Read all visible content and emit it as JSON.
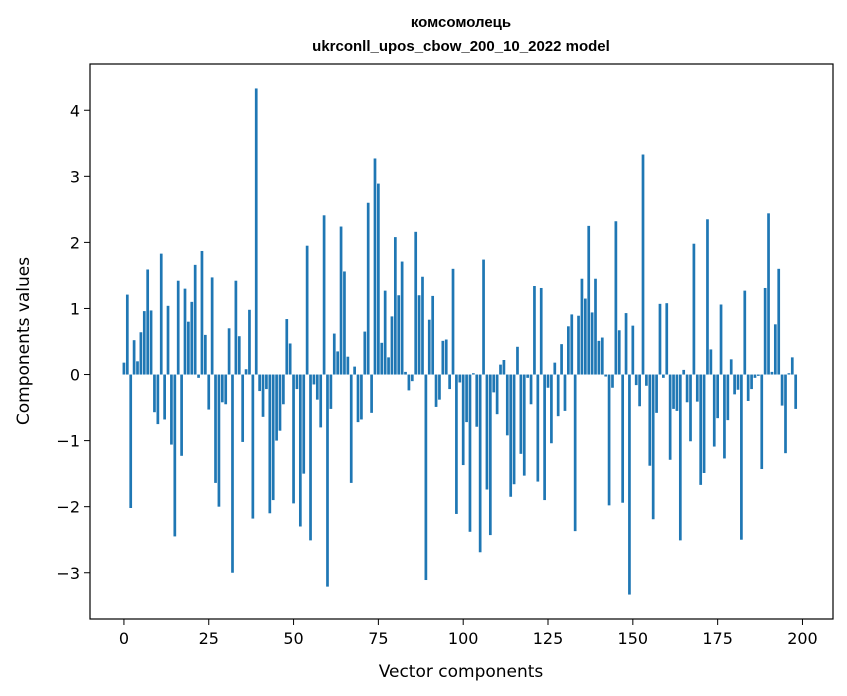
{
  "chart_data": {
    "type": "bar",
    "title": "комсомолець",
    "subtitle": "ukrconll_upos_cbow_200_10_2022 model",
    "xlabel": "Vector components",
    "ylabel": "Components values",
    "xlim": [
      -10,
      209
    ],
    "ylim": [
      -3.7,
      4.7
    ],
    "xticks": [
      0,
      25,
      50,
      75,
      100,
      125,
      150,
      175,
      200
    ],
    "xtick_labels": [
      "0",
      "25",
      "50",
      "75",
      "100",
      "125",
      "150",
      "175",
      "200"
    ],
    "yticks": [
      -3,
      -2,
      -1,
      0,
      1,
      2,
      3,
      4
    ],
    "ytick_labels": [
      "−3",
      "−2",
      "−1",
      "0",
      "1",
      "2",
      "3",
      "4"
    ],
    "grid": false,
    "bar_color": "#1f77b4",
    "values": [
      0.18,
      1.21,
      -2.02,
      0.52,
      0.2,
      0.64,
      0.96,
      1.59,
      0.97,
      -0.57,
      -0.75,
      1.83,
      -0.68,
      1.04,
      -1.06,
      -2.45,
      1.42,
      -1.23,
      1.3,
      0.8,
      1.1,
      1.66,
      -0.05,
      1.87,
      0.6,
      -0.53,
      1.47,
      -1.64,
      -2.0,
      -0.42,
      -0.45,
      0.7,
      -3.0,
      1.42,
      0.58,
      -1.02,
      0.08,
      0.98,
      -2.18,
      4.33,
      -0.25,
      -0.64,
      -0.22,
      -2.1,
      -1.9,
      -1.0,
      -0.85,
      -0.45,
      0.84,
      0.47,
      -1.95,
      -0.22,
      -2.3,
      -1.5,
      1.95,
      -2.51,
      -0.15,
      -0.38,
      -0.8,
      2.41,
      -3.21,
      -0.52,
      0.62,
      0.35,
      2.24,
      1.56,
      0.27,
      -1.64,
      0.12,
      -0.72,
      -0.68,
      0.65,
      2.6,
      -0.58,
      3.27,
      2.89,
      0.48,
      1.27,
      0.26,
      0.88,
      2.08,
      1.2,
      1.71,
      0.04,
      -0.24,
      -0.1,
      2.16,
      1.2,
      1.48,
      -3.11,
      0.83,
      1.19,
      -0.49,
      -0.38,
      0.51,
      0.53,
      -0.22,
      1.6,
      -2.11,
      -0.12,
      -1.37,
      -0.72,
      -2.38,
      0.02,
      -0.79,
      -2.69,
      1.74,
      -1.74,
      -2.43,
      -0.27,
      -0.6,
      0.15,
      0.22,
      -0.92,
      -1.85,
      -1.66,
      0.42,
      -1.2,
      -1.53,
      -0.05,
      -0.45,
      1.34,
      -1.62,
      1.31,
      -1.9,
      -0.2,
      -1.04,
      0.18,
      -0.63,
      0.46,
      -0.55,
      0.73,
      0.91,
      -2.37,
      0.89,
      1.45,
      1.15,
      2.25,
      0.94,
      1.45,
      0.51,
      0.56,
      -0.03,
      -1.98,
      -0.2,
      2.32,
      0.67,
      -1.94,
      0.93,
      -3.33,
      0.74,
      -0.16,
      -0.48,
      3.33,
      -0.17,
      -1.38,
      -2.19,
      -0.58,
      1.07,
      -0.05,
      1.08,
      -1.29,
      -0.52,
      -0.55,
      -2.51,
      0.07,
      -0.42,
      -1.01,
      1.98,
      -0.41,
      -1.67,
      -1.49,
      2.35,
      0.38,
      -1.09,
      -0.66,
      1.06,
      -1.27,
      -0.69,
      0.23,
      -0.3,
      -0.23,
      -2.5,
      1.27,
      -0.4,
      -0.22,
      -0.05,
      -0.02,
      -1.43,
      1.31,
      2.44,
      0.04,
      0.76,
      1.6,
      -0.47,
      -1.19,
      0.02,
      0.26,
      -0.52
    ]
  }
}
